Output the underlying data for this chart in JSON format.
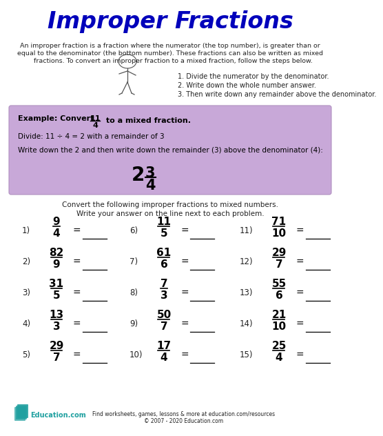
{
  "title": "Improper Fractions",
  "title_color": "#0000BB",
  "bg_color": "#FFFFFF",
  "intro_line1": "An improper fraction is a fraction where the numerator (the top number), is greater than or",
  "intro_line2": "equal to the denominator (the bottom number). These fractions can also be written as mixed",
  "intro_line3": "   fractions. To convert an improper fraction to a mixed fraction, follow the steps below.",
  "step1": "1. Divide the numerator by the denominator.",
  "step2": "2. Write down the whole number answer.",
  "step3": "3. Then write down any remainder above the denominator.",
  "example_bg": "#C8A8D8",
  "example_border": "#B090C0",
  "ex_label": "Example: Convert",
  "ex_frac_num": "11",
  "ex_frac_den": "4",
  "ex_suffix": " to a mixed fraction.",
  "ex_divide": "Divide: 11 ÷ 4 = 2 with a remainder of 3",
  "ex_write": "Write down the 2 and then write down the remainder (3) above the denominator (4):",
  "worksheet_line1": "Convert the following improper fractions to mixed numbers.",
  "worksheet_line2": "Write your answer on the line next to each problem.",
  "problems": [
    {
      "num": "9",
      "den": "4"
    },
    {
      "num": "82",
      "den": "9"
    },
    {
      "num": "31",
      "den": "5"
    },
    {
      "num": "13",
      "den": "3"
    },
    {
      "num": "29",
      "den": "7"
    },
    {
      "num": "11",
      "den": "5"
    },
    {
      "num": "61",
      "den": "6"
    },
    {
      "num": "7",
      "den": "3"
    },
    {
      "num": "50",
      "den": "7"
    },
    {
      "num": "17",
      "den": "4"
    },
    {
      "num": "71",
      "den": "10"
    },
    {
      "num": "29",
      "den": "7"
    },
    {
      "num": "55",
      "den": "6"
    },
    {
      "num": "21",
      "den": "10"
    },
    {
      "num": "25",
      "den": "4"
    }
  ],
  "prob_labels_col1": [
    "1)",
    "2)",
    "3)",
    "4)",
    "5)"
  ],
  "prob_labels_col2": [
    "6)",
    "7)",
    "8)",
    "9)",
    "10)"
  ],
  "prob_labels_col3": [
    "11)",
    "12)",
    "13)",
    "14)",
    "15)"
  ],
  "teal_color": "#20A0A0",
  "dark_text": "#222222",
  "footer_text": "Find worksheets, games, lessons & more at education.com/resources",
  "footer_copy": "© 2007 - 2020 Education.com"
}
